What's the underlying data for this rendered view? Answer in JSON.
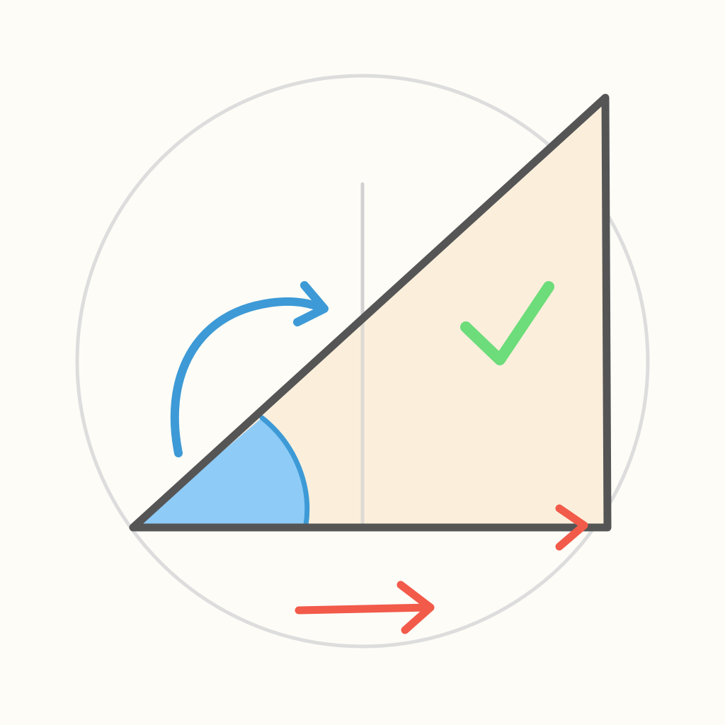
{
  "colors": {
    "background": "#fdfcf7",
    "circle_outline": "#dddddd",
    "guide_line": "#d2d2d2",
    "triangle_fill": "#fbefdc",
    "triangle_stroke": "#555555",
    "angle_fill": "#8ecbf7",
    "angle_stroke": "#3d9ad6",
    "rotation_arrow": "#3d9ad6",
    "check_mark": "#6ddc7a",
    "direction_arrow": "#f25a4a"
  },
  "icons": {
    "rotation": "curved-arrow-clockwise",
    "check": "check-mark",
    "direction": "arrow-right"
  }
}
